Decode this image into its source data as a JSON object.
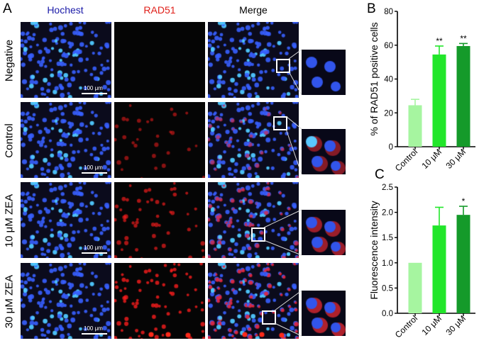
{
  "panel_letters": {
    "a": "A",
    "b": "B",
    "c": "C"
  },
  "columns": [
    "Hochest",
    "RAD51",
    "Merge"
  ],
  "rows": [
    {
      "label": "Negative"
    },
    {
      "label": "Control"
    },
    {
      "label": "10 μM  ZEA"
    },
    {
      "label": "30 μM  ZEA"
    }
  ],
  "scale_bar_label": "100 μm",
  "colors": {
    "hochest_header": "#1a1aa8",
    "rad51_header": "#e0201a",
    "merge_header": "#000000",
    "bar_control": "#a6f5a0",
    "bar_10": "#22e62a",
    "bar_30": "#159a2a"
  },
  "chart_data": [
    {
      "type": "bar",
      "panel": "B",
      "categories": [
        "Control",
        "10 μM",
        "30 μM"
      ],
      "values": [
        24.5,
        54.5,
        59.5
      ],
      "errors": [
        3.5,
        5,
        1.5
      ],
      "significance": [
        "",
        "**",
        "**"
      ],
      "ylabel": "% of RAD51 positive cells",
      "ylim": [
        0,
        80
      ],
      "yticks": [
        "0",
        "20",
        "40",
        "60",
        "80"
      ]
    },
    {
      "type": "bar",
      "panel": "C",
      "categories": [
        "Control",
        "10 μM",
        "30 μM"
      ],
      "values": [
        1.0,
        1.74,
        1.95
      ],
      "errors": [
        0,
        0.36,
        0.17
      ],
      "significance": [
        "",
        "",
        "*"
      ],
      "ylabel": "Fluorescence intensity",
      "ylim": [
        0,
        2.5
      ],
      "yticks": [
        "0.0",
        "0.5",
        "1.0",
        "1.5",
        "2.0",
        "2.5"
      ]
    }
  ]
}
